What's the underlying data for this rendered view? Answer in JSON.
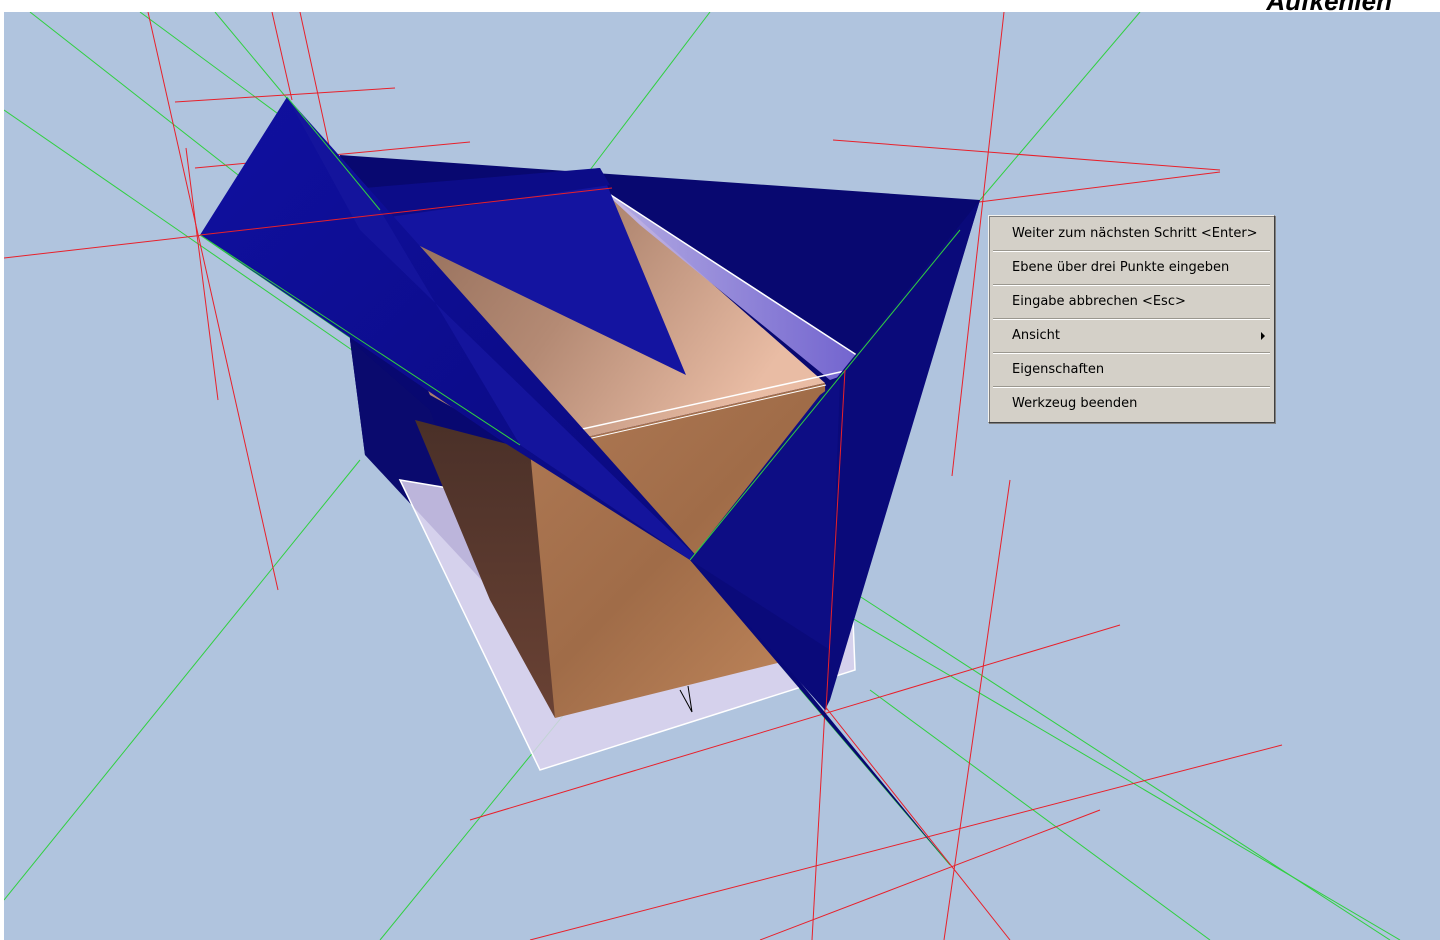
{
  "corner_title": "Aufkehlen",
  "context_menu": {
    "items": [
      {
        "label": "Weiter zum nächsten Schritt <Enter>"
      },
      {
        "label": "Ebene über drei Punkte eingeben"
      },
      {
        "label": "Eingabe abbrechen <Esc>"
      },
      {
        "label": "Ansicht",
        "submenu": true
      },
      {
        "label": "Eigenschaften"
      },
      {
        "label": "Werkzeug beenden"
      }
    ]
  },
  "colors": {
    "viewport_background": "#b0c4de",
    "plane_fill": "#0a0a82",
    "wood_fill": "#a0704c",
    "construction_line_red": "#e8202a",
    "construction_line_green": "#30d040",
    "edge_white": "#ffffff",
    "menu_background": "#d4d0c8"
  },
  "icons": {
    "submenu": "chevron-right-icon"
  }
}
